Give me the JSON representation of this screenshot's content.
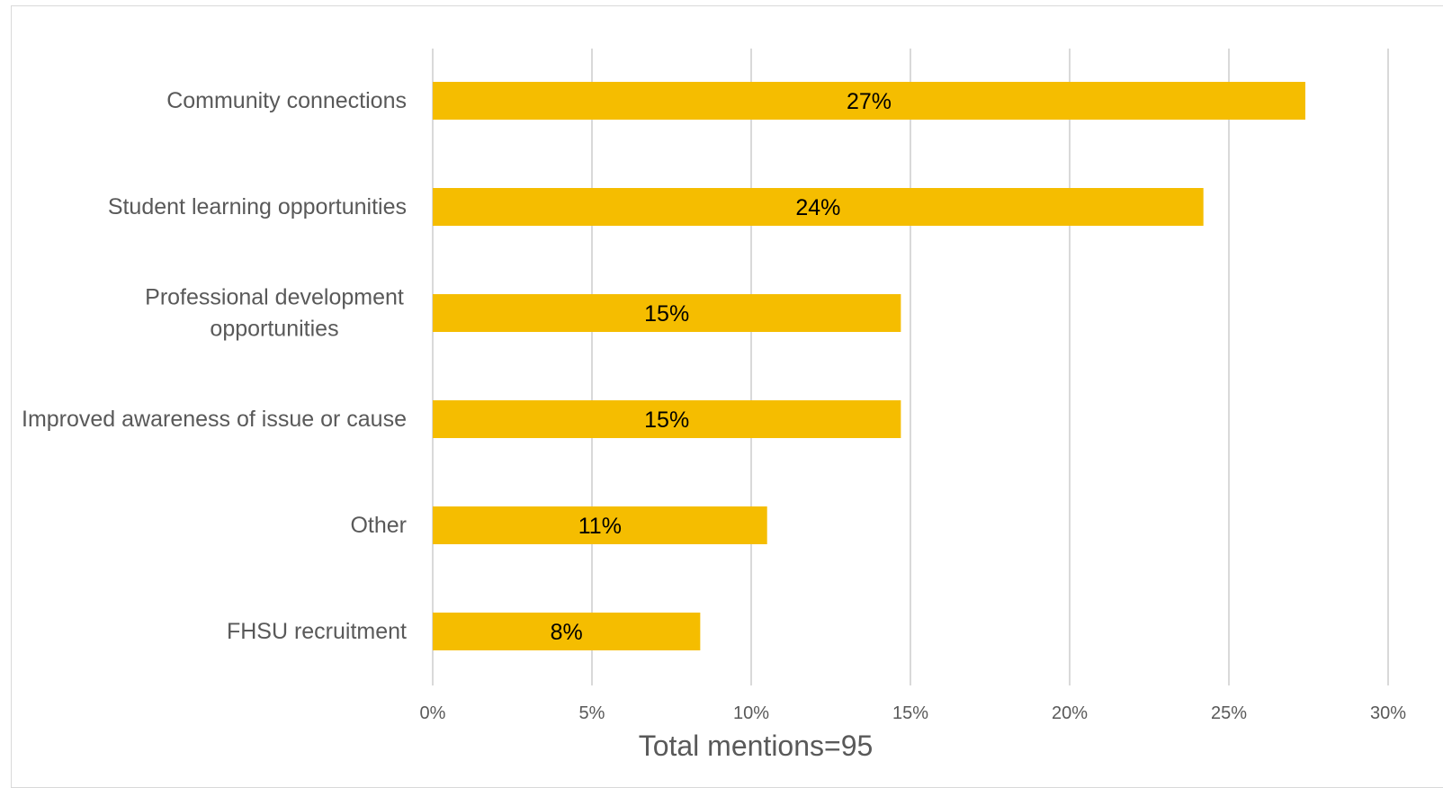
{
  "chart_data": {
    "type": "bar",
    "orientation": "horizontal",
    "categories": [
      [
        "Community connections"
      ],
      [
        "Student learning opportunities"
      ],
      [
        "Professional development",
        "opportunities"
      ],
      [
        "Improved awareness of issue or cause"
      ],
      [
        "Other"
      ],
      [
        "FHSU recruitment"
      ]
    ],
    "values": [
      27.4,
      24.2,
      14.7,
      14.7,
      10.5,
      8.4
    ],
    "data_labels": [
      "27%",
      "24%",
      "15%",
      "15%",
      "11%",
      "8%"
    ],
    "xlabel": "Total mentions=95",
    "xlim": [
      0,
      30
    ],
    "xticks": [
      0,
      5,
      10,
      15,
      20,
      25,
      30
    ],
    "xtick_labels": [
      "0%",
      "5%",
      "10%",
      "15%",
      "20%",
      "25%",
      "30%"
    ],
    "grid": "vertical",
    "legend": "none",
    "colors": {
      "bar": "#F5BD00",
      "grid": "#d9d9d9",
      "text": "#595959"
    }
  }
}
